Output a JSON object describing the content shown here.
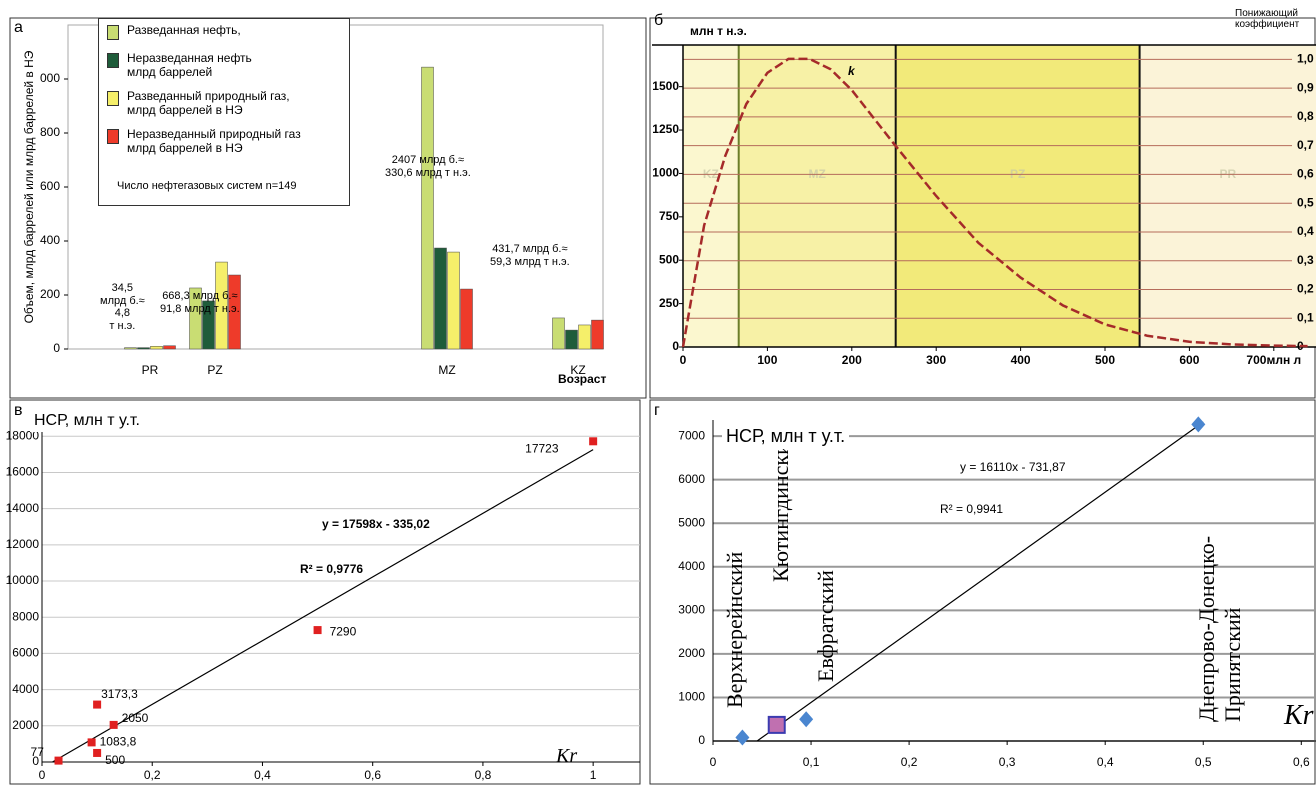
{
  "chart_data": [
    {
      "type": "bar",
      "panel": "а",
      "y_label": "Объем, млрд баррелей или млрд баррелей в НЭ",
      "x_label": "Возраст",
      "categories": [
        "PR",
        "PZ",
        "MZ",
        "KZ"
      ],
      "series": [
        {
          "name": "Разведанная нефть,",
          "color": "#c9dd73",
          "values": [
            5,
            226,
            1044,
            115
          ]
        },
        {
          "name": "Неразведанная нефть\nмлрд баррелей",
          "color": "#1f5c3a",
          "values": [
            5,
            178,
            374,
            70
          ]
        },
        {
          "name": "Разведанный природный газ,\nмлрд баррелей в НЭ",
          "color": "#f5ef6a",
          "values": [
            10,
            322,
            359,
            89
          ]
        },
        {
          "name": "Неразведанный природный газ\nмлрд баррелей в НЭ",
          "color": "#ee3b2a",
          "values": [
            12,
            274,
            222,
            107
          ]
        }
      ],
      "legend_note": "Число нефтегазовых систем n=149",
      "annotations": [
        "34,5\nмлрд б.≈\n4,8\nт н.э.",
        "668,3 млрд б.≈\n91,8 млрд т н.э.",
        "2407 млрд б.≈\n330,6 млрд т н.э.",
        "431,7 млрд б.≈\n59,3 млрд т н.э."
      ],
      "ylim": [
        0,
        1200
      ],
      "yticks": [
        0,
        200,
        400,
        600,
        800,
        {
          "value": 1000,
          "label": "000"
        }
      ]
    },
    {
      "type": "line",
      "panel": "б",
      "y_label": "млн т н.э.",
      "y2_label": "Понижающий\nкоэффициент",
      "curve_label": "k",
      "x": [
        0,
        25,
        50,
        75,
        100,
        125,
        150,
        175,
        200,
        250,
        300,
        350,
        400,
        450,
        500,
        550,
        600,
        650,
        700,
        740
      ],
      "series": [
        {
          "color": "#a52a2a",
          "values": [
            0,
            700,
            1100,
            1400,
            1580,
            1660,
            1660,
            1600,
            1480,
            1170,
            870,
            600,
            400,
            240,
            130,
            65,
            30,
            15,
            8,
            5
          ]
        }
      ],
      "bands": [
        {
          "label": "KZ",
          "from": 0,
          "color": "#fbf7cf"
        },
        {
          "label": "MZ",
          "from": 66,
          "color": "#f7f1a6"
        },
        {
          "label": "PZ",
          "from": 252,
          "color": "#f2ea7a"
        },
        {
          "label": "PR",
          "from": 541,
          "color": "#fbf3d8"
        }
      ],
      "xlim": [
        0,
        750
      ],
      "xticks": [
        0,
        100,
        200,
        300,
        400,
        500,
        600,
        {
          "value": 700,
          "label": "700млн л"
        }
      ],
      "ylim": [
        0,
        1740
      ],
      "yticks": [
        0,
        250,
        500,
        750,
        1000,
        1250,
        1500
      ],
      "y2lim": [
        0,
        1.05
      ],
      "y2ticks": [
        0,
        {
          "value": 0.1,
          "label": "0,1"
        },
        {
          "value": 0.2,
          "label": "0,2"
        },
        {
          "value": 0.3,
          "label": "0,3"
        },
        {
          "value": 0.4,
          "label": "0,4"
        },
        {
          "value": 0.5,
          "label": "0,5"
        },
        {
          "value": 0.6,
          "label": "0,6"
        },
        {
          "value": 0.7,
          "label": "0,7"
        },
        {
          "value": 0.8,
          "label": "0,8"
        },
        {
          "value": 0.9,
          "label": "0,9"
        },
        {
          "value": 1,
          "label": "1,0"
        }
      ]
    },
    {
      "type": "scatter",
      "panel": "в",
      "y_label": "НСР, млн т у.т.",
      "x_label": "Kr",
      "color": "#e02020",
      "grid": true,
      "x": [
        0.03,
        0.1,
        0.09,
        0.13,
        0.1,
        0.5,
        1
      ],
      "values": [
        77,
        500,
        1083.8,
        2050,
        3173.3,
        7290,
        17723
      ],
      "value_labels": [
        "77",
        "500",
        "1083,8",
        "2050",
        "3173,3",
        "7290",
        "17723"
      ],
      "trend": {
        "x": [
          0.019,
          1
        ],
        "y": [
          0,
          17263
        ]
      },
      "equation": "y = 17598x - 335,02",
      "r2": "R² = 0,9776",
      "xlim": [
        0,
        1.085
      ],
      "xticks": [
        0,
        {
          "value": 0.2,
          "label": "0,2"
        },
        {
          "value": 0.4,
          "label": "0,4"
        },
        {
          "value": 0.6,
          "label": "0,6"
        },
        {
          "value": 0.8,
          "label": "0,8"
        },
        1
      ],
      "ylim": [
        0,
        18900
      ],
      "yticks": [
        0,
        2000,
        4000,
        6000,
        8000,
        10000,
        12000,
        14000,
        16000,
        18000
      ]
    },
    {
      "type": "scatter",
      "panel": "г",
      "y_label": "НСР, млн т у.т.",
      "x_label": "Kr",
      "grid": true,
      "x": [
        0.03,
        0.065,
        0.095,
        0.495
      ],
      "values": [
        80,
        370,
        500,
        7270
      ],
      "colors": [
        "#4a86d0",
        "#c070b0",
        "#4a86d0",
        "#4a86d0"
      ],
      "markers": [
        "diamond",
        "square",
        "diamond",
        "diamond"
      ],
      "point_labels": [
        "Верхнерейнский",
        "Кютингдинский",
        "Евфратский",
        "Днепрово-Донецко-\nПрипятский"
      ],
      "trend": {
        "x": [
          0.045,
          0.5
        ],
        "y": [
          0,
          7323
        ]
      },
      "equation": "y = 16110x - 731,87",
      "r2": "R² = 0,9941",
      "xlim": [
        0,
        0.615
      ],
      "xticks": [
        0,
        {
          "value": 0.1,
          "label": "0,1"
        },
        {
          "value": 0.2,
          "label": "0,2"
        },
        {
          "value": 0.3,
          "label": "0,3"
        },
        {
          "value": 0.4,
          "label": "0,4"
        },
        {
          "value": 0.5,
          "label": "0,5"
        },
        {
          "value": 0.6,
          "label": "0,6"
        }
      ],
      "ylim": [
        0,
        7370
      ],
      "yticks": [
        0,
        1000,
        2000,
        3000,
        4000,
        5000,
        6000,
        7000
      ]
    }
  ]
}
